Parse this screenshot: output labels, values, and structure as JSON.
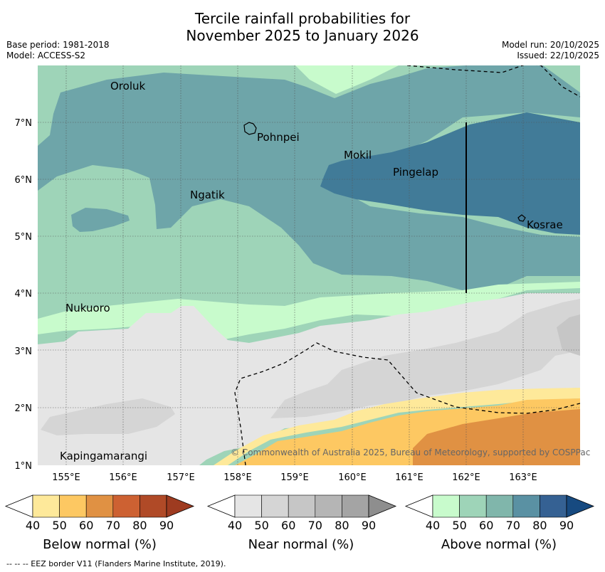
{
  "title": {
    "line1": "Tercile rainfall probabilities for",
    "line2": "November 2025 to January 2026"
  },
  "meta": {
    "base_period": "Base period: 1981-2018",
    "model": "Model: ACCESS-S2",
    "model_run": "Model run: 20/10/2025",
    "issued": "Issued: 22/10/2025"
  },
  "map": {
    "lon_ticks": [
      "155°E",
      "156°E",
      "157°E",
      "158°E",
      "159°E",
      "160°E",
      "161°E",
      "162°E",
      "163°E"
    ],
    "lat_ticks": [
      "1°N",
      "2°N",
      "3°N",
      "4°N",
      "5°N",
      "6°N",
      "7°N"
    ],
    "places": [
      "Oroluk",
      "Pohnpei",
      "Mokil",
      "Pingelap",
      "Ngatik",
      "Kosrae",
      "Nukuoro",
      "Kapingamarangi"
    ],
    "copyright": "© Commonwealth of Australia 2025, Bureau of Meteorology, supported by COSPPac"
  },
  "legends": {
    "ticks": [
      "40",
      "50",
      "60",
      "70",
      "80",
      "90"
    ],
    "below": {
      "label": "Below normal (%)",
      "colors": [
        "#fee99a",
        "#fdc862",
        "#e09143",
        "#cd6132",
        "#b04a27",
        "#9e3b20"
      ]
    },
    "near": {
      "label": "Near normal (%)",
      "colors": [
        "#e5e5e5",
        "#d5d5d5",
        "#c6c6c6",
        "#b5b5b5",
        "#a4a4a4",
        "#8e8e8e"
      ]
    },
    "above": {
      "label": "Above normal (%)",
      "colors": [
        "#c8fbcc",
        "#9ed4b8",
        "#80b6ab",
        "#5a91a3",
        "#356193",
        "#174a80"
      ]
    }
  },
  "footnote": "--  --  -- EEZ border V11 (Flanders Marine Institute, 2019)."
}
